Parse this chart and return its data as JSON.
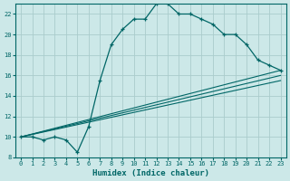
{
  "xlabel": "Humidex (Indice chaleur)",
  "bg_color": "#cce8e8",
  "grid_color": "#aacccc",
  "line_color": "#006666",
  "xlim": [
    -0.5,
    23.5
  ],
  "ylim": [
    8,
    23
  ],
  "xticks": [
    0,
    1,
    2,
    3,
    4,
    5,
    6,
    7,
    8,
    9,
    10,
    11,
    12,
    13,
    14,
    15,
    16,
    17,
    18,
    19,
    20,
    21,
    22,
    23
  ],
  "yticks": [
    8,
    10,
    12,
    14,
    16,
    18,
    20,
    22
  ],
  "main_x": [
    0,
    1,
    2,
    3,
    4,
    5,
    6,
    7,
    8,
    9,
    10,
    11,
    12,
    13,
    14,
    15,
    16,
    17,
    18,
    19,
    20,
    21,
    22,
    23
  ],
  "main_y": [
    10,
    10,
    9.7,
    10,
    9.7,
    8.5,
    11.0,
    15.5,
    19.0,
    20.5,
    21.5,
    21.5,
    23.0,
    23.0,
    22.0,
    22.0,
    21.5,
    21.0,
    20.0,
    20.0,
    19.0,
    17.5,
    17.0,
    16.5
  ],
  "trend1_x": [
    0,
    23
  ],
  "trend1_y": [
    10,
    16.5
  ],
  "trend2_x": [
    0,
    23
  ],
  "trend2_y": [
    10,
    16.0
  ],
  "trend3_x": [
    0,
    23
  ],
  "trend3_y": [
    10,
    15.5
  ]
}
